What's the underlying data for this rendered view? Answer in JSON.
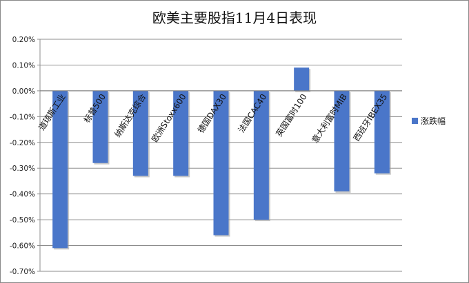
{
  "chart_data": {
    "type": "bar",
    "title": "欧美主要股指11月4日表现",
    "categories": [
      "道琼斯工业",
      "标普500",
      "纳斯达克综合",
      "欧洲Stoxx600",
      "德国DAX30",
      "法国CAC40",
      "英国富时100",
      "意大利富时MIB",
      "西班牙IBEX35"
    ],
    "series": [
      {
        "name": "涨跌幅",
        "values": [
          -0.61,
          -0.28,
          -0.33,
          -0.33,
          -0.56,
          -0.5,
          0.09,
          -0.39,
          -0.32
        ]
      }
    ],
    "ylim": [
      -0.7,
      0.2
    ],
    "yticks": [
      "0.20%",
      "0.10%",
      "0.00%",
      "-0.10%",
      "-0.20%",
      "-0.30%",
      "-0.40%",
      "-0.50%",
      "-0.60%",
      "-0.70%"
    ],
    "ytick_values": [
      0.2,
      0.1,
      0.0,
      -0.1,
      -0.2,
      -0.3,
      -0.4,
      -0.5,
      -0.6,
      -0.7
    ],
    "grid": true,
    "legend_position": "right",
    "bar_color": "#4a76c9",
    "xlabel": "",
    "ylabel": ""
  }
}
